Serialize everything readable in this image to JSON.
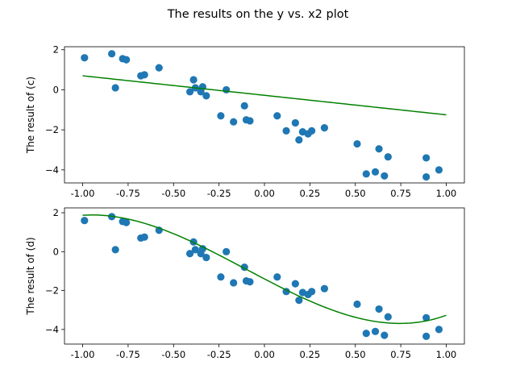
{
  "chart_data": {
    "type": "scatter",
    "suptitle": "The results on the y vs. x2 plot",
    "colors": {
      "points": "#1f77b4",
      "fit": "#008000"
    },
    "x": [
      -0.99,
      -0.84,
      -0.82,
      -0.78,
      -0.76,
      -0.68,
      -0.66,
      -0.58,
      -0.41,
      -0.39,
      -0.38,
      -0.35,
      -0.34,
      -0.32,
      -0.24,
      -0.21,
      -0.17,
      -0.11,
      -0.1,
      -0.08,
      0.07,
      0.12,
      0.17,
      0.19,
      0.21,
      0.24,
      0.26,
      0.33,
      0.51,
      0.56,
      0.61,
      0.63,
      0.66,
      0.68,
      0.89,
      0.89,
      0.96
    ],
    "y": [
      1.6,
      1.8,
      0.1,
      1.55,
      1.5,
      0.7,
      0.75,
      1.1,
      -0.1,
      0.5,
      0.1,
      -0.1,
      0.15,
      -0.3,
      -1.3,
      0.0,
      -1.6,
      -0.8,
      -1.5,
      -1.55,
      -1.3,
      -2.05,
      -1.65,
      -2.5,
      -2.1,
      -2.2,
      -2.05,
      -1.9,
      -2.7,
      -4.2,
      -4.1,
      -2.95,
      -4.3,
      -3.35,
      -3.4,
      -4.35,
      -4.0
    ],
    "subplots": [
      {
        "ylabel": "The result of (c)",
        "ylim": [
          -4.65,
          2.15
        ],
        "xlim": [
          -1.1,
          1.1
        ],
        "xticks": [
          "-1.00",
          "-0.75",
          "-0.50",
          "-0.25",
          "0.00",
          "0.25",
          "0.50",
          "0.75",
          "1.00"
        ],
        "yticks": [
          "2",
          "0",
          "−2",
          "−4"
        ],
        "fit": {
          "kind": "linear",
          "x_range": [
            -1.0,
            1.0
          ],
          "y_at_ends": [
            0.7,
            -1.25
          ]
        }
      },
      {
        "ylabel": "The result of (d)",
        "ylim": [
          -4.75,
          2.25
        ],
        "xlim": [
          -1.1,
          1.1
        ],
        "xticks": [
          "-1.00",
          "-0.75",
          "-0.50",
          "-0.25",
          "0.00",
          "0.25",
          "0.50",
          "0.75",
          "1.00"
        ],
        "yticks": [
          "2",
          "0",
          "−2",
          "−4"
        ],
        "fit": {
          "kind": "cubic",
          "x_range": [
            -1.0,
            1.0
          ],
          "coefficients_c3_c2_c1_c0": [
            2.3,
            0.7,
            -4.87,
            -1.4
          ]
        }
      }
    ]
  }
}
